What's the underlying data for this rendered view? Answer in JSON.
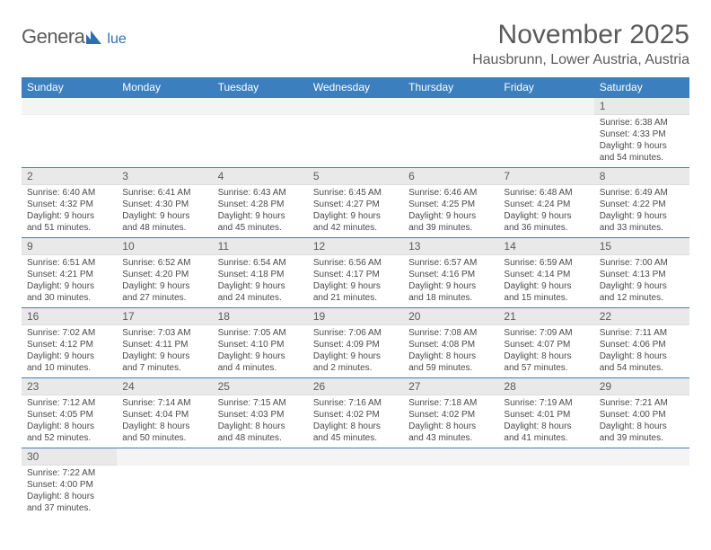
{
  "logo": {
    "main": "Genera",
    "sub": "lue"
  },
  "title": "November 2025",
  "location": "Hausbrunn, Lower Austria, Austria",
  "colors": {
    "header_bg": "#3b7fbf",
    "header_text": "#ffffff",
    "daynum_bg": "#e9e9e9",
    "text": "#5a5a5a",
    "rule": "#3b7fbf",
    "logo_blue": "#2f6fb0"
  },
  "weekdays": [
    "Sunday",
    "Monday",
    "Tuesday",
    "Wednesday",
    "Thursday",
    "Friday",
    "Saturday"
  ],
  "weeks": [
    [
      {
        "empty": true
      },
      {
        "empty": true
      },
      {
        "empty": true
      },
      {
        "empty": true
      },
      {
        "empty": true
      },
      {
        "empty": true
      },
      {
        "n": "1",
        "sunrise": "Sunrise: 6:38 AM",
        "sunset": "Sunset: 4:33 PM",
        "dl1": "Daylight: 9 hours",
        "dl2": "and 54 minutes."
      }
    ],
    [
      {
        "n": "2",
        "sunrise": "Sunrise: 6:40 AM",
        "sunset": "Sunset: 4:32 PM",
        "dl1": "Daylight: 9 hours",
        "dl2": "and 51 minutes."
      },
      {
        "n": "3",
        "sunrise": "Sunrise: 6:41 AM",
        "sunset": "Sunset: 4:30 PM",
        "dl1": "Daylight: 9 hours",
        "dl2": "and 48 minutes."
      },
      {
        "n": "4",
        "sunrise": "Sunrise: 6:43 AM",
        "sunset": "Sunset: 4:28 PM",
        "dl1": "Daylight: 9 hours",
        "dl2": "and 45 minutes."
      },
      {
        "n": "5",
        "sunrise": "Sunrise: 6:45 AM",
        "sunset": "Sunset: 4:27 PM",
        "dl1": "Daylight: 9 hours",
        "dl2": "and 42 minutes."
      },
      {
        "n": "6",
        "sunrise": "Sunrise: 6:46 AM",
        "sunset": "Sunset: 4:25 PM",
        "dl1": "Daylight: 9 hours",
        "dl2": "and 39 minutes."
      },
      {
        "n": "7",
        "sunrise": "Sunrise: 6:48 AM",
        "sunset": "Sunset: 4:24 PM",
        "dl1": "Daylight: 9 hours",
        "dl2": "and 36 minutes."
      },
      {
        "n": "8",
        "sunrise": "Sunrise: 6:49 AM",
        "sunset": "Sunset: 4:22 PM",
        "dl1": "Daylight: 9 hours",
        "dl2": "and 33 minutes."
      }
    ],
    [
      {
        "n": "9",
        "sunrise": "Sunrise: 6:51 AM",
        "sunset": "Sunset: 4:21 PM",
        "dl1": "Daylight: 9 hours",
        "dl2": "and 30 minutes."
      },
      {
        "n": "10",
        "sunrise": "Sunrise: 6:52 AM",
        "sunset": "Sunset: 4:20 PM",
        "dl1": "Daylight: 9 hours",
        "dl2": "and 27 minutes."
      },
      {
        "n": "11",
        "sunrise": "Sunrise: 6:54 AM",
        "sunset": "Sunset: 4:18 PM",
        "dl1": "Daylight: 9 hours",
        "dl2": "and 24 minutes."
      },
      {
        "n": "12",
        "sunrise": "Sunrise: 6:56 AM",
        "sunset": "Sunset: 4:17 PM",
        "dl1": "Daylight: 9 hours",
        "dl2": "and 21 minutes."
      },
      {
        "n": "13",
        "sunrise": "Sunrise: 6:57 AM",
        "sunset": "Sunset: 4:16 PM",
        "dl1": "Daylight: 9 hours",
        "dl2": "and 18 minutes."
      },
      {
        "n": "14",
        "sunrise": "Sunrise: 6:59 AM",
        "sunset": "Sunset: 4:14 PM",
        "dl1": "Daylight: 9 hours",
        "dl2": "and 15 minutes."
      },
      {
        "n": "15",
        "sunrise": "Sunrise: 7:00 AM",
        "sunset": "Sunset: 4:13 PM",
        "dl1": "Daylight: 9 hours",
        "dl2": "and 12 minutes."
      }
    ],
    [
      {
        "n": "16",
        "sunrise": "Sunrise: 7:02 AM",
        "sunset": "Sunset: 4:12 PM",
        "dl1": "Daylight: 9 hours",
        "dl2": "and 10 minutes."
      },
      {
        "n": "17",
        "sunrise": "Sunrise: 7:03 AM",
        "sunset": "Sunset: 4:11 PM",
        "dl1": "Daylight: 9 hours",
        "dl2": "and 7 minutes."
      },
      {
        "n": "18",
        "sunrise": "Sunrise: 7:05 AM",
        "sunset": "Sunset: 4:10 PM",
        "dl1": "Daylight: 9 hours",
        "dl2": "and 4 minutes."
      },
      {
        "n": "19",
        "sunrise": "Sunrise: 7:06 AM",
        "sunset": "Sunset: 4:09 PM",
        "dl1": "Daylight: 9 hours",
        "dl2": "and 2 minutes."
      },
      {
        "n": "20",
        "sunrise": "Sunrise: 7:08 AM",
        "sunset": "Sunset: 4:08 PM",
        "dl1": "Daylight: 8 hours",
        "dl2": "and 59 minutes."
      },
      {
        "n": "21",
        "sunrise": "Sunrise: 7:09 AM",
        "sunset": "Sunset: 4:07 PM",
        "dl1": "Daylight: 8 hours",
        "dl2": "and 57 minutes."
      },
      {
        "n": "22",
        "sunrise": "Sunrise: 7:11 AM",
        "sunset": "Sunset: 4:06 PM",
        "dl1": "Daylight: 8 hours",
        "dl2": "and 54 minutes."
      }
    ],
    [
      {
        "n": "23",
        "sunrise": "Sunrise: 7:12 AM",
        "sunset": "Sunset: 4:05 PM",
        "dl1": "Daylight: 8 hours",
        "dl2": "and 52 minutes."
      },
      {
        "n": "24",
        "sunrise": "Sunrise: 7:14 AM",
        "sunset": "Sunset: 4:04 PM",
        "dl1": "Daylight: 8 hours",
        "dl2": "and 50 minutes."
      },
      {
        "n": "25",
        "sunrise": "Sunrise: 7:15 AM",
        "sunset": "Sunset: 4:03 PM",
        "dl1": "Daylight: 8 hours",
        "dl2": "and 48 minutes."
      },
      {
        "n": "26",
        "sunrise": "Sunrise: 7:16 AM",
        "sunset": "Sunset: 4:02 PM",
        "dl1": "Daylight: 8 hours",
        "dl2": "and 45 minutes."
      },
      {
        "n": "27",
        "sunrise": "Sunrise: 7:18 AM",
        "sunset": "Sunset: 4:02 PM",
        "dl1": "Daylight: 8 hours",
        "dl2": "and 43 minutes."
      },
      {
        "n": "28",
        "sunrise": "Sunrise: 7:19 AM",
        "sunset": "Sunset: 4:01 PM",
        "dl1": "Daylight: 8 hours",
        "dl2": "and 41 minutes."
      },
      {
        "n": "29",
        "sunrise": "Sunrise: 7:21 AM",
        "sunset": "Sunset: 4:00 PM",
        "dl1": "Daylight: 8 hours",
        "dl2": "and 39 minutes."
      }
    ],
    [
      {
        "n": "30",
        "sunrise": "Sunrise: 7:22 AM",
        "sunset": "Sunset: 4:00 PM",
        "dl1": "Daylight: 8 hours",
        "dl2": "and 37 minutes."
      },
      {
        "empty": true
      },
      {
        "empty": true
      },
      {
        "empty": true
      },
      {
        "empty": true
      },
      {
        "empty": true
      },
      {
        "empty": true
      }
    ]
  ]
}
